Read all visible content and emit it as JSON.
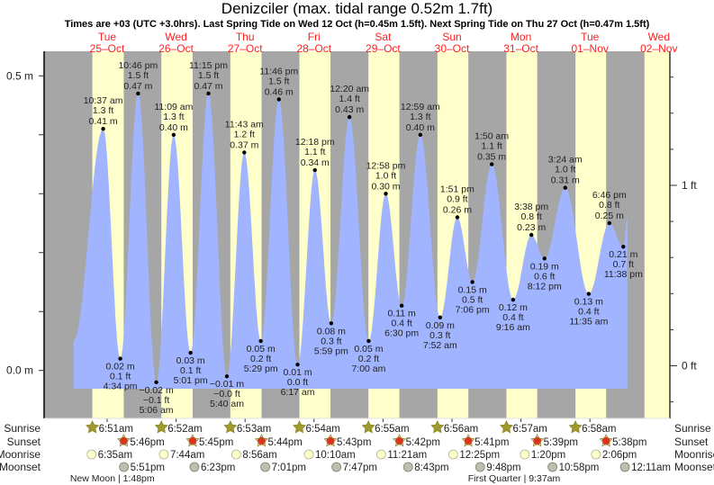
{
  "header": {
    "title": "Denizciler (max. tidal range 0.52m 1.7ft)",
    "subtitle": "Times are +03 (UTC +3.0hrs). Last Spring Tide on Wed 12 Oct (h=0.45m 1.5ft). Next Spring Tide on Thu 27 Oct (h=0.47m 1.5ft)"
  },
  "colors": {
    "day": "#ffffcc",
    "night": "#a6a6a6",
    "water": "#a0b4ff",
    "day_label": "#ff2020",
    "sunrise_icon": "#a09a30",
    "sunset_icon": "#e03020",
    "moonrise_icon": "#ffffcc",
    "moonset_icon": "#bdbdb0"
  },
  "chart_data": {
    "type": "area",
    "title": "Denizciler (max. tidal range 0.52m 1.7ft)",
    "xlabel": "",
    "ylabel_left": "m",
    "ylabel_right": "ft",
    "left_axis": {
      "ticks": [
        {
          "value": 0.0,
          "label": "0.0 m"
        },
        {
          "value": 0.5,
          "label": "0.5 m"
        }
      ],
      "minor_step": 0.1
    },
    "right_axis": {
      "ticks": [
        {
          "value": 0,
          "label": "0 ft"
        },
        {
          "value": 1,
          "label": "1 ft"
        }
      ],
      "minor_step": 0.2
    },
    "days": [
      {
        "dow": "Tue",
        "date": "25–Oct",
        "day_index": 0
      },
      {
        "dow": "Wed",
        "date": "26–Oct",
        "day_index": 1
      },
      {
        "dow": "Thu",
        "date": "27–Oct",
        "day_index": 2
      },
      {
        "dow": "Fri",
        "date": "28–Oct",
        "day_index": 3
      },
      {
        "dow": "Sat",
        "date": "29–Oct",
        "day_index": 4
      },
      {
        "dow": "Sun",
        "date": "30–Oct",
        "day_index": 5
      },
      {
        "dow": "Mon",
        "date": "31–Oct",
        "day_index": 6
      },
      {
        "dow": "Tue",
        "date": "01–Nov",
        "day_index": 7
      },
      {
        "dow": "Wed",
        "date": "02–Nov",
        "day_index": 8
      }
    ],
    "tides": [
      {
        "type": "high",
        "day": 0,
        "time": "10:37 am",
        "hours": 10.62,
        "m": 0.41,
        "ft": "1.3 ft",
        "m_label": "0.41 m"
      },
      {
        "type": "low",
        "day": 0,
        "time": "4:34 pm",
        "hours": 16.57,
        "m": 0.02,
        "ft": "0.1 ft",
        "m_label": "0.02 m"
      },
      {
        "type": "high",
        "day": 0,
        "time": "10:46 pm",
        "hours": 22.77,
        "m": 0.47,
        "ft": "1.5 ft",
        "m_label": "0.47 m"
      },
      {
        "type": "low",
        "day": 1,
        "time": "5:06 am",
        "hours": 5.1,
        "m": -0.02,
        "ft": "−0.1 ft",
        "m_label": "−0.02 m"
      },
      {
        "type": "high",
        "day": 1,
        "time": "11:09 am",
        "hours": 11.15,
        "m": 0.4,
        "ft": "1.3 ft",
        "m_label": "0.40 m"
      },
      {
        "type": "low",
        "day": 1,
        "time": "5:01 pm",
        "hours": 17.02,
        "m": 0.03,
        "ft": "0.1 ft",
        "m_label": "0.03 m"
      },
      {
        "type": "high",
        "day": 1,
        "time": "11:15 pm",
        "hours": 23.25,
        "m": 0.47,
        "ft": "1.5 ft",
        "m_label": "0.47 m"
      },
      {
        "type": "low",
        "day": 2,
        "time": "5:40 am",
        "hours": 5.67,
        "m": -0.01,
        "ft": "−0.0 ft",
        "m_label": "−0.01 m"
      },
      {
        "type": "high",
        "day": 2,
        "time": "11:43 am",
        "hours": 11.72,
        "m": 0.37,
        "ft": "1.2 ft",
        "m_label": "0.37 m"
      },
      {
        "type": "low",
        "day": 2,
        "time": "5:29 pm",
        "hours": 17.48,
        "m": 0.05,
        "ft": "0.2 ft",
        "m_label": "0.05 m"
      },
      {
        "type": "high",
        "day": 2,
        "time": "11:46 pm",
        "hours": 23.77,
        "m": 0.46,
        "ft": "1.5 ft",
        "m_label": "0.46 m"
      },
      {
        "type": "low",
        "day": 3,
        "time": "6:17 am",
        "hours": 6.28,
        "m": 0.01,
        "ft": "0.0 ft",
        "m_label": "0.01 m"
      },
      {
        "type": "high",
        "day": 3,
        "time": "12:18 pm",
        "hours": 12.3,
        "m": 0.34,
        "ft": "1.1 ft",
        "m_label": "0.34 m"
      },
      {
        "type": "low",
        "day": 3,
        "time": "5:59 pm",
        "hours": 17.98,
        "m": 0.08,
        "ft": "0.3 ft",
        "m_label": "0.08 m"
      },
      {
        "type": "high",
        "day": 4,
        "time": "12:20 am",
        "hours": 0.33,
        "m": 0.43,
        "ft": "1.4 ft",
        "m_label": "0.43 m"
      },
      {
        "type": "low",
        "day": 4,
        "time": "7:00 am",
        "hours": 7.0,
        "m": 0.05,
        "ft": "0.2 ft",
        "m_label": "0.05 m"
      },
      {
        "type": "high",
        "day": 4,
        "time": "12:58 pm",
        "hours": 12.97,
        "m": 0.3,
        "ft": "1.0 ft",
        "m_label": "0.30 m"
      },
      {
        "type": "low",
        "day": 4,
        "time": "6:30 pm",
        "hours": 18.5,
        "m": 0.11,
        "ft": "0.4 ft",
        "m_label": "0.11 m"
      },
      {
        "type": "high",
        "day": 5,
        "time": "12:59 am",
        "hours": 0.98,
        "m": 0.4,
        "ft": "1.3 ft",
        "m_label": "0.40 m"
      },
      {
        "type": "low",
        "day": 5,
        "time": "7:52 am",
        "hours": 7.87,
        "m": 0.09,
        "ft": "0.3 ft",
        "m_label": "0.09 m"
      },
      {
        "type": "high",
        "day": 5,
        "time": "1:51 pm",
        "hours": 13.85,
        "m": 0.26,
        "ft": "0.9 ft",
        "m_label": "0.26 m"
      },
      {
        "type": "low",
        "day": 5,
        "time": "7:06 pm",
        "hours": 19.1,
        "m": 0.15,
        "ft": "0.5 ft",
        "m_label": "0.15 m"
      },
      {
        "type": "high",
        "day": 6,
        "time": "1:50 am",
        "hours": 1.83,
        "m": 0.35,
        "ft": "1.1 ft",
        "m_label": "0.35 m"
      },
      {
        "type": "low",
        "day": 6,
        "time": "9:16 am",
        "hours": 9.27,
        "m": 0.12,
        "ft": "0.4 ft",
        "m_label": "0.12 m"
      },
      {
        "type": "high",
        "day": 6,
        "time": "3:38 pm",
        "hours": 15.63,
        "m": 0.23,
        "ft": "0.8 ft",
        "m_label": "0.23 m"
      },
      {
        "type": "low",
        "day": 6,
        "time": "8:12 pm",
        "hours": 20.2,
        "m": 0.19,
        "ft": "0.6 ft",
        "m_label": "0.19 m"
      },
      {
        "type": "high",
        "day": 7,
        "time": "3:24 am",
        "hours": 3.4,
        "m": 0.31,
        "ft": "1.0 ft",
        "m_label": "0.31 m"
      },
      {
        "type": "low",
        "day": 7,
        "time": "11:35 am",
        "hours": 11.58,
        "m": 0.13,
        "ft": "0.4 ft",
        "m_label": "0.13 m"
      },
      {
        "type": "high",
        "day": 7,
        "time": "6:46 pm",
        "hours": 18.77,
        "m": 0.25,
        "ft": "0.8 ft",
        "m_label": "0.25 m"
      },
      {
        "type": "low",
        "day": 7,
        "time": "11:38 pm",
        "hours": 23.63,
        "m": 0.21,
        "ft": "0.7 ft",
        "m_label": "0.21 m"
      }
    ],
    "series_start": {
      "day": 0,
      "hours": 0.3,
      "m": 0.05
    },
    "series_end": {
      "day": 8,
      "hours": 1.0,
      "m": 0.26
    }
  },
  "almanac": {
    "row_labels": [
      "Sunrise",
      "Sunset",
      "Moonrise",
      "Moonset"
    ],
    "sunrise": [
      {
        "day": 0,
        "hours": 6.85,
        "label": "6:51am"
      },
      {
        "day": 1,
        "hours": 6.87,
        "label": "6:52am"
      },
      {
        "day": 2,
        "hours": 6.88,
        "label": "6:53am"
      },
      {
        "day": 3,
        "hours": 6.9,
        "label": "6:54am"
      },
      {
        "day": 4,
        "hours": 6.92,
        "label": "6:55am"
      },
      {
        "day": 5,
        "hours": 6.93,
        "label": "6:56am"
      },
      {
        "day": 6,
        "hours": 6.95,
        "label": "6:57am"
      },
      {
        "day": 7,
        "hours": 6.97,
        "label": "6:58am"
      }
    ],
    "sunset": [
      {
        "day": 0,
        "hours": 17.77,
        "label": "5:46pm"
      },
      {
        "day": 1,
        "hours": 17.75,
        "label": "5:45pm"
      },
      {
        "day": 2,
        "hours": 17.73,
        "label": "5:44pm"
      },
      {
        "day": 3,
        "hours": 17.72,
        "label": "5:43pm"
      },
      {
        "day": 4,
        "hours": 17.7,
        "label": "5:42pm"
      },
      {
        "day": 5,
        "hours": 17.68,
        "label": "5:41pm"
      },
      {
        "day": 6,
        "hours": 17.65,
        "label": "5:39pm"
      },
      {
        "day": 7,
        "hours": 17.63,
        "label": "5:38pm"
      }
    ],
    "moonrise": [
      {
        "day": 0,
        "hours": 6.58,
        "label": "6:35am"
      },
      {
        "day": 1,
        "hours": 7.73,
        "label": "7:44am"
      },
      {
        "day": 2,
        "hours": 8.93,
        "label": "8:56am"
      },
      {
        "day": 3,
        "hours": 10.17,
        "label": "10:10am"
      },
      {
        "day": 4,
        "hours": 11.35,
        "label": "11:21am"
      },
      {
        "day": 5,
        "hours": 12.42,
        "label": "12:25pm"
      },
      {
        "day": 6,
        "hours": 13.33,
        "label": "1:20pm"
      },
      {
        "day": 7,
        "hours": 14.1,
        "label": "2:06pm"
      }
    ],
    "moonset": [
      {
        "day": 0,
        "hours": 17.85,
        "label": "5:51pm"
      },
      {
        "day": 1,
        "hours": 18.38,
        "label": "6:23pm"
      },
      {
        "day": 2,
        "hours": 19.02,
        "label": "7:01pm"
      },
      {
        "day": 3,
        "hours": 19.78,
        "label": "7:47pm"
      },
      {
        "day": 4,
        "hours": 20.72,
        "label": "8:43pm"
      },
      {
        "day": 5,
        "hours": 21.8,
        "label": "9:48pm"
      },
      {
        "day": 6,
        "hours": 22.97,
        "label": "10:58pm"
      },
      {
        "day": 8,
        "hours": 0.18,
        "label": "12:11am"
      }
    ],
    "moon_phases": [
      {
        "day": 0,
        "hours": 13.8,
        "label": "New Moon | 1:48pm"
      },
      {
        "day": 6,
        "hours": 9.62,
        "label": "First Quarter | 9:37am"
      }
    ]
  }
}
